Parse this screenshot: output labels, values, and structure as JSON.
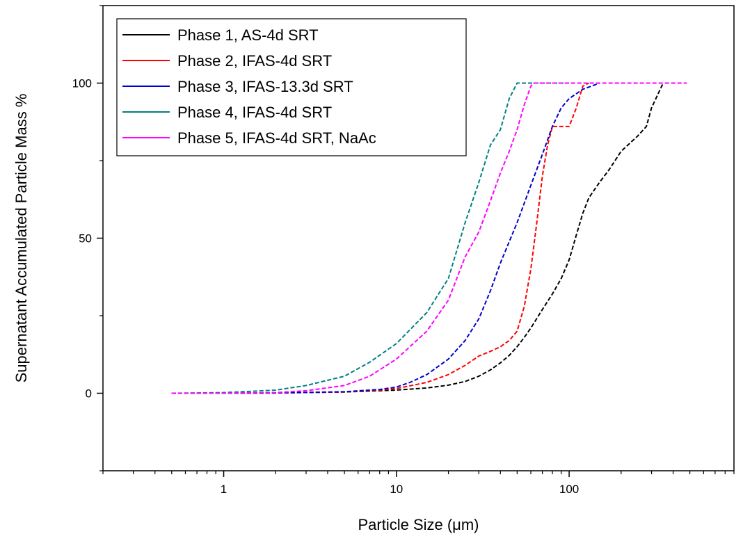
{
  "chart_data": {
    "type": "line",
    "xlabel": "Particle Size (μm)",
    "ylabel": "Supernatant Accumulated Particle Mass %",
    "x_scale": "log",
    "xlim": [
      0.2,
      900
    ],
    "ylim": [
      -25,
      125
    ],
    "x_ticks": [
      1,
      10,
      100
    ],
    "x_tick_labels": [
      "1",
      "10",
      "100"
    ],
    "y_ticks": [
      0,
      50,
      100
    ],
    "y_tick_labels": [
      "0",
      "50",
      "100"
    ],
    "grid": false,
    "legend_position": "top-left",
    "series": [
      {
        "name": "Phase 1, AS-4d SRT",
        "color": "#000000",
        "x": [
          0.5,
          1,
          2,
          5,
          10,
          15,
          20,
          25,
          30,
          35,
          40,
          45,
          50,
          55,
          60,
          70,
          80,
          90,
          100,
          110,
          120,
          130,
          150,
          170,
          200,
          250,
          280,
          300,
          350
        ],
        "y": [
          0,
          0,
          0.1,
          0.4,
          1,
          1.7,
          2.6,
          3.8,
          5.5,
          7.5,
          9.8,
          12.2,
          15,
          18,
          21,
          27,
          32,
          37,
          43,
          51,
          58,
          63,
          68,
          72,
          78,
          83,
          86,
          92,
          100
        ]
      },
      {
        "name": "Phase 2, IFAS-4d SRT",
        "color": "#ff0000",
        "x": [
          0.5,
          1,
          2,
          5,
          8,
          10,
          15,
          20,
          25,
          30,
          35,
          40,
          45,
          50,
          55,
          60,
          65,
          70,
          75,
          80,
          85,
          90,
          100,
          110,
          120,
          130
        ],
        "y": [
          0,
          0,
          0.1,
          0.4,
          1,
          1.5,
          3.5,
          6,
          9,
          12,
          13.5,
          15,
          17,
          20,
          28,
          40,
          55,
          70,
          80,
          86,
          86,
          86,
          86,
          92,
          99,
          100
        ]
      },
      {
        "name": "Phase 3, IFAS-13.3d SRT",
        "color": "#0000cc",
        "x": [
          0.5,
          1,
          2,
          5,
          8,
          10,
          12,
          15,
          20,
          25,
          30,
          35,
          40,
          50,
          60,
          70,
          80,
          90,
          100,
          120,
          150
        ],
        "y": [
          0,
          0,
          0.1,
          0.5,
          1.2,
          2,
          3.5,
          6,
          11,
          17,
          24,
          33,
          42,
          55,
          67,
          77,
          86,
          92,
          95,
          98,
          100
        ]
      },
      {
        "name": "Phase 4, IFAS-4d SRT",
        "color": "#008080",
        "x": [
          0.5,
          1,
          2,
          3,
          5,
          7,
          10,
          15,
          20,
          25,
          30,
          35,
          40,
          45,
          50,
          60,
          80,
          100
        ],
        "y": [
          0,
          0.2,
          1,
          2.5,
          5.5,
          10,
          16,
          26,
          37,
          55,
          68,
          80,
          85,
          95,
          100,
          100,
          100,
          100
        ]
      },
      {
        "name": "Phase 5, IFAS-4d SRT, NaAc",
        "color": "#ff00ff",
        "x": [
          0.5,
          1,
          2,
          3,
          5,
          7,
          10,
          15,
          20,
          25,
          30,
          35,
          40,
          45,
          50,
          55,
          60,
          62,
          100,
          200,
          300,
          480
        ],
        "y": [
          0,
          0,
          0.2,
          0.8,
          2.5,
          5.5,
          11,
          20,
          30,
          44,
          52,
          62,
          71,
          78,
          85,
          93,
          99,
          100,
          100,
          100,
          100,
          100
        ]
      }
    ]
  }
}
